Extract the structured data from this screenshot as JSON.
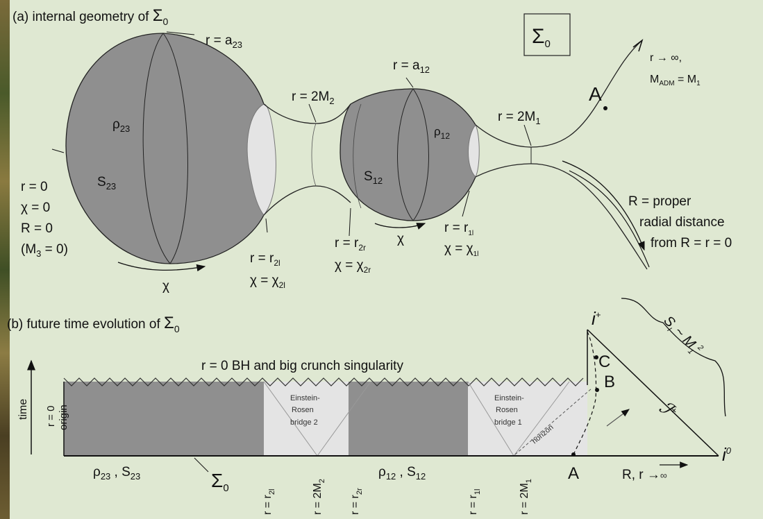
{
  "panel_a": {
    "title_prefix": "(a) internal geometry of ",
    "sigma": "Σ",
    "sub0": "0",
    "box_sigma": "Σ",
    "r_eq": "r = ",
    "a23": "a",
    "a23_sub": "23",
    "a12_sub": "12",
    "twoM": "2M",
    "two": "2",
    "one": "1",
    "r_inf_line1": "r → ∞,",
    "madm": "M",
    "madm_sub": "ADM",
    "madm_eq": " = M",
    "A": "A",
    "rho": "ρ",
    "S": "S",
    "left_r0": "r = 0",
    "left_chi0": "χ = 0",
    "left_R0": "R = 0",
    "left_M3": "(M",
    "m3_sub": "3",
    "left_M3_end": " = 0)",
    "chi": "χ",
    "r_2l": "2l",
    "r_2r": "2r",
    "r_1l": "1l",
    "chi_eq": "χ = χ",
    "R_proper_1": "R = proper",
    "R_proper_2": "radial distance",
    "R_proper_3": "from R = r = 0"
  },
  "panel_b": {
    "title_prefix": "(b) future time evolution of ",
    "singularity": "r = 0 BH and big crunch singularity",
    "time": "time",
    "origin_1": "r = 0",
    "origin_2": "origin",
    "er2": [
      "Einstein-",
      "Rosen",
      "bridge 2"
    ],
    "er1": [
      "Einstein-",
      "Rosen",
      "bridge 1"
    ],
    "horizon": "horizon",
    "i_plus": "i",
    "i_plus_sup": "+",
    "i_zero": "i",
    "i_zero_sup": "0",
    "scri": "ℐ",
    "scri_sup": "+",
    "S_M": "S",
    "S_M_sub": "I",
    "S_M_rel": " ~ M",
    "S_M_sup": "2",
    "C": "C",
    "B": "B",
    "A": "A",
    "rho23S23": "ρ",
    "sep": " , S",
    "R_r_inf": "R, r →",
    "inf": "∞",
    "axis_labels": [
      "r = r",
      "r = 2M",
      "r = r",
      "r = r",
      "r = 2M"
    ],
    "axis_subs": [
      "2l",
      "2",
      "2r",
      "1l",
      "1"
    ]
  },
  "colors": {
    "background": "#dfe8d2",
    "shade": "#8f8f8f",
    "light": "#e4e4e4"
  }
}
